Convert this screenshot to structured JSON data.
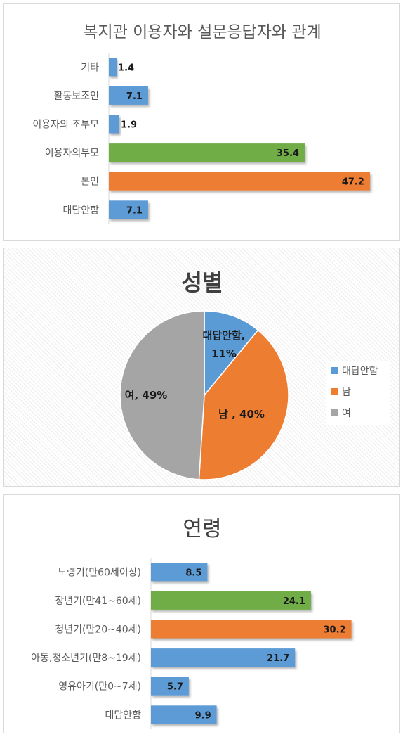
{
  "chart_data": [
    {
      "type": "bar",
      "title": "복지관 이용자와 설문응답자와 관계",
      "categories": [
        "기타",
        "활동보조인",
        "이용자의 조부모",
        "이용자의부모",
        "본인",
        "대답안함"
      ],
      "values": [
        1.4,
        7.1,
        1.9,
        35.4,
        47.2,
        7.1
      ],
      "value_labels": [
        "1.4",
        "7.1",
        "1.9",
        "35.4",
        "47.2",
        "7.1"
      ],
      "colors": [
        "#5b9bd5",
        "#5b9bd5",
        "#5b9bd5",
        "#70ad47",
        "#ed7d31",
        "#5b9bd5"
      ],
      "xlim": [
        0,
        50
      ],
      "grid": false
    },
    {
      "type": "pie",
      "title": "성별",
      "categories": [
        "대답안함",
        "남",
        "여"
      ],
      "values": [
        11,
        40,
        49
      ],
      "slice_labels": [
        "대답안함, 11%",
        "남 , 40%",
        "여, 49%"
      ],
      "colors": [
        "#5b9bd5",
        "#ed7d31",
        "#a5a5a5"
      ],
      "legend": "right"
    },
    {
      "type": "bar",
      "title": "연령",
      "categories": [
        "노령기(만60세이상)",
        "장년기(만41~60세)",
        "청년기(만20~40세)",
        "아동,청소년기(만8~19세)",
        "영유아기(만0~7세)",
        "대답안함"
      ],
      "values": [
        8.5,
        24.1,
        30.2,
        21.7,
        5.7,
        9.9
      ],
      "value_labels": [
        "8.5",
        "24.1",
        "30.2",
        "21.7",
        "5.7",
        "9.9"
      ],
      "colors": [
        "#5b9bd5",
        "#70ad47",
        "#ed7d31",
        "#5b9bd5",
        "#5b9bd5",
        "#5b9bd5"
      ],
      "xlim": [
        0,
        35
      ],
      "grid": false
    }
  ]
}
